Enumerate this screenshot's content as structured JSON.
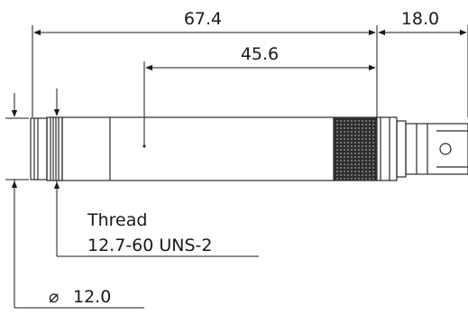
{
  "dimensions": {
    "overall_length": "67.4",
    "connector_length": "18.0",
    "knurl_position": "45.6"
  },
  "thread_note": {
    "label": "Thread",
    "spec": "12.7-60 UNS-2"
  },
  "diameter_note": {
    "symbol": "⌀",
    "value": "12.0"
  },
  "colors": {
    "line": "#1a1a1a",
    "knurl": "#3a3a3a",
    "body_fill": "#ffffff"
  }
}
